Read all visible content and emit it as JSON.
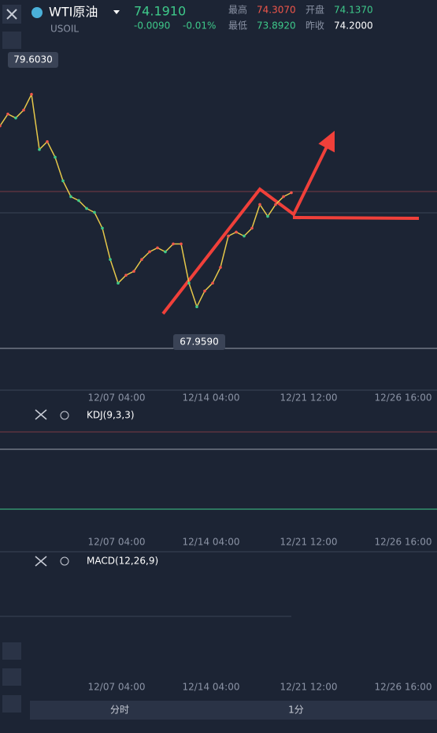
{
  "header": {
    "symbol": "WTI原油",
    "price": "74.1910",
    "code": "USOIL",
    "change": "-0.0090",
    "change_pct": "-0.01%",
    "stats": [
      {
        "label": "最高",
        "value": "74.3070"
      },
      {
        "label": "开盘",
        "value": "74.1370"
      },
      {
        "label": "最低",
        "value": "73.8920"
      },
      {
        "label": "昨收",
        "value": "74.2000"
      }
    ]
  },
  "price_chart": {
    "high_label": "79.6030",
    "low_label": "67.9590",
    "ylim": [
      64.7,
      81.8
    ],
    "closes": [
      77.25,
      77.82,
      77.63,
      78.01,
      78.77,
      76.11,
      76.49,
      75.74,
      74.6,
      73.84,
      73.65,
      73.27,
      73.08,
      72.32,
      70.81,
      69.67,
      70.05,
      70.24,
      70.81,
      71.18,
      71.37,
      71.18,
      71.56,
      71.56,
      69.67,
      68.53,
      69.29,
      69.67,
      70.43,
      71.94,
      72.13,
      71.94,
      72.32,
      73.46,
      72.89,
      73.46,
      73.84,
      74.03
    ],
    "time_labels": [
      "12/07 04:00",
      "12/14 04:00",
      "12/21 12:00",
      "12/26 16:00"
    ]
  },
  "indicators": {
    "kdj": "KDJ(9,3,3)",
    "macd": "MACD(12,26,9)"
  },
  "footer": {
    "tabs": [
      "分时",
      "1分"
    ]
  }
}
